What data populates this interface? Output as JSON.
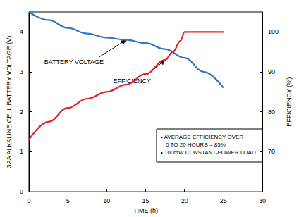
{
  "chart_data": {
    "type": "line",
    "x_label": "TIME (h)",
    "y_label": "3AA ALKALINE CELL BATTERY VOLTAGE (V)",
    "y2_label": "EFFICIENCY (%)",
    "xlim": [
      0,
      30
    ],
    "xticks": [
      0,
      5,
      10,
      15,
      20,
      25,
      30
    ],
    "ylim": [
      0,
      4.5
    ],
    "yticks": [
      0,
      1,
      2,
      3,
      4
    ],
    "y2lim": [
      60,
      105
    ],
    "y2ticks": [
      70,
      80,
      90,
      100
    ],
    "grid": false,
    "series": [
      {
        "name": "BATTERY VOLTAGE",
        "color": "#2f78c0",
        "x": [
          0,
          2.5,
          5,
          7.5,
          10,
          12.5,
          15,
          17.5,
          20,
          22.5,
          25
        ],
        "values": [
          4.5,
          4.3,
          4.1,
          3.96,
          3.86,
          3.8,
          3.72,
          3.57,
          3.35,
          3.0,
          2.6
        ]
      },
      {
        "name": "EFFICIENCY",
        "color": "#e02028",
        "axis": "y2",
        "x": [
          0,
          2.5,
          5,
          7.5,
          10,
          12.5,
          15,
          17.5,
          18.5,
          19.5,
          20,
          22.5,
          25
        ],
        "values": [
          73,
          77.5,
          81,
          83.3,
          85,
          86.8,
          89.5,
          93,
          95,
          97.8,
          100,
          100,
          100
        ]
      }
    ],
    "annotations": [
      "• AVERAGE EFFICIENCY OVER",
      "0 TO 20 HOURS = 85%",
      "• 100mW CONSTANT-POWER LOAD"
    ]
  }
}
